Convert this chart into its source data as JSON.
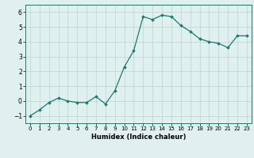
{
  "x": [
    0,
    1,
    2,
    3,
    4,
    5,
    6,
    7,
    8,
    9,
    10,
    11,
    12,
    13,
    14,
    15,
    16,
    17,
    18,
    19,
    20,
    21,
    22,
    23
  ],
  "y": [
    -1.0,
    -0.6,
    -0.1,
    0.2,
    0.0,
    -0.1,
    -0.1,
    0.3,
    -0.2,
    0.7,
    2.3,
    3.4,
    5.7,
    5.5,
    5.8,
    5.7,
    5.1,
    4.7,
    4.2,
    4.0,
    3.9,
    3.6,
    4.4,
    4.4
  ],
  "xlim": [
    -0.5,
    23.5
  ],
  "ylim": [
    -1.5,
    6.5
  ],
  "yticks": [
    -1,
    0,
    1,
    2,
    3,
    4,
    5,
    6
  ],
  "xticks": [
    0,
    1,
    2,
    3,
    4,
    5,
    6,
    7,
    8,
    9,
    10,
    11,
    12,
    13,
    14,
    15,
    16,
    17,
    18,
    19,
    20,
    21,
    22,
    23
  ],
  "xlabel": "Humidex (Indice chaleur)",
  "line_color": "#1a7a6e",
  "marker": "D",
  "marker_size": 1.8,
  "bg_color": "#dff0ef",
  "grid_color": "#b8d5d0",
  "fig_bg": "#dff0ef",
  "tick_fontsize_x": 5.0,
  "tick_fontsize_y": 5.5,
  "xlabel_fontsize": 6.0
}
